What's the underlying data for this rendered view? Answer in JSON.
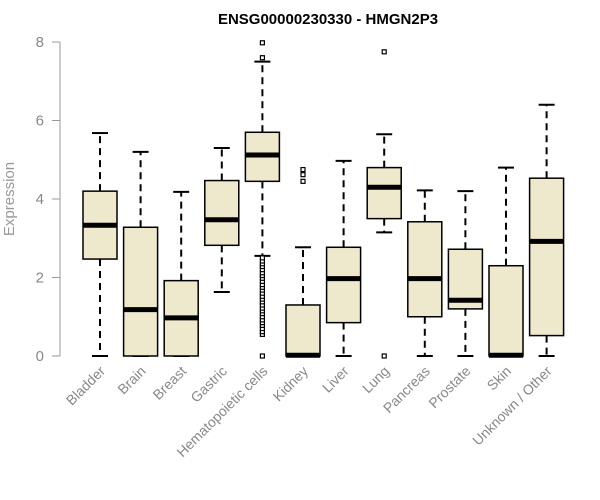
{
  "chart_data": {
    "type": "boxplot",
    "title": "ENSG00000230330 - HMGN2P3",
    "xlabel": "",
    "ylabel": "Expression",
    "ylim": [
      0,
      8
    ],
    "yticks": [
      0,
      2,
      4,
      6,
      8
    ],
    "grid": false,
    "colors": {
      "box_fill": "#EEE8CD",
      "stroke": "#000000",
      "axis": "#999999"
    },
    "categories": [
      "Bladder",
      "Brain",
      "Breast",
      "Gastric",
      "Hematopoietic cells",
      "Kidney",
      "Liver",
      "Lung",
      "Pancreas",
      "Prostate",
      "Skin",
      "Unknown / Other"
    ],
    "boxes": [
      {
        "category": "Bladder",
        "whisker_low": 0,
        "q1": 2.47,
        "median": 3.33,
        "q3": 4.2,
        "whisker_high": 5.68,
        "outliers": []
      },
      {
        "category": "Brain",
        "whisker_low": 0,
        "q1": 0,
        "median": 1.18,
        "q3": 3.28,
        "whisker_high": 5.2,
        "outliers": []
      },
      {
        "category": "Breast",
        "whisker_low": 0,
        "q1": 0,
        "median": 0.97,
        "q3": 1.92,
        "whisker_high": 4.18,
        "outliers": []
      },
      {
        "category": "Gastric",
        "whisker_low": 1.63,
        "q1": 2.82,
        "median": 3.47,
        "q3": 4.47,
        "whisker_high": 5.3,
        "outliers": []
      },
      {
        "category": "Hematopoietic cells",
        "whisker_low": 2.55,
        "q1": 4.45,
        "median": 5.12,
        "q3": 5.7,
        "whisker_high": 7.5,
        "outliers": [
          0,
          0.55,
          0.62,
          0.7,
          0.78,
          0.85,
          0.92,
          1.0,
          1.08,
          1.15,
          1.22,
          1.3,
          1.38,
          1.45,
          1.52,
          1.6,
          1.68,
          1.75,
          1.82,
          1.9,
          1.98,
          2.05,
          2.12,
          2.2,
          2.28,
          2.35,
          2.42,
          2.5,
          7.6,
          7.98
        ]
      },
      {
        "category": "Kidney",
        "whisker_low": 0,
        "q1": 0,
        "median": 0.02,
        "q3": 1.3,
        "whisker_high": 2.77,
        "outliers": [
          4.45,
          4.62,
          4.75
        ]
      },
      {
        "category": "Liver",
        "whisker_low": 0,
        "q1": 0.85,
        "median": 1.97,
        "q3": 2.77,
        "whisker_high": 4.97,
        "outliers": []
      },
      {
        "category": "Lung",
        "whisker_low": 3.15,
        "q1": 3.5,
        "median": 4.3,
        "q3": 4.8,
        "whisker_high": 5.65,
        "outliers": [
          0,
          7.75
        ]
      },
      {
        "category": "Pancreas",
        "whisker_low": 0,
        "q1": 1.0,
        "median": 1.97,
        "q3": 3.42,
        "whisker_high": 4.22,
        "outliers": []
      },
      {
        "category": "Prostate",
        "whisker_low": 0,
        "q1": 1.2,
        "median": 1.42,
        "q3": 2.72,
        "whisker_high": 4.2,
        "outliers": []
      },
      {
        "category": "Skin",
        "whisker_low": 0,
        "q1": 0,
        "median": 0.02,
        "q3": 2.3,
        "whisker_high": 4.8,
        "outliers": []
      },
      {
        "category": "Unknown / Other",
        "whisker_low": 0,
        "q1": 0.52,
        "median": 2.92,
        "q3": 4.53,
        "whisker_high": 6.4,
        "outliers": []
      }
    ]
  }
}
